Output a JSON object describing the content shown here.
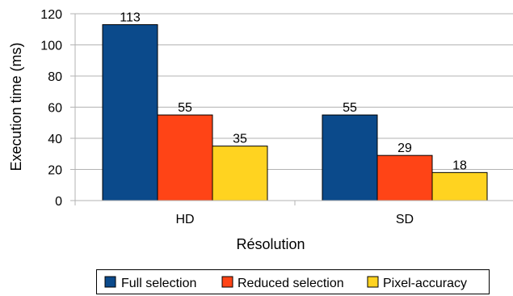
{
  "chart_data": {
    "type": "bar",
    "categories": [
      "HD",
      "SD"
    ],
    "series": [
      {
        "name": "Full selection",
        "values": [
          113,
          55
        ],
        "color": "#0b4a8b"
      },
      {
        "name": "Reduced selection",
        "values": [
          55,
          29
        ],
        "color": "#ff4416"
      },
      {
        "name": "Pixel-accuracy",
        "values": [
          35,
          18
        ],
        "color": "#ffd320"
      }
    ],
    "xlabel": "Résolution",
    "ylabel": "Execution time (ms)",
    "ylim": [
      0,
      120
    ],
    "yticks": [
      0,
      20,
      40,
      60,
      80,
      100,
      120
    ],
    "grid": true,
    "legend_position": "bottom"
  }
}
